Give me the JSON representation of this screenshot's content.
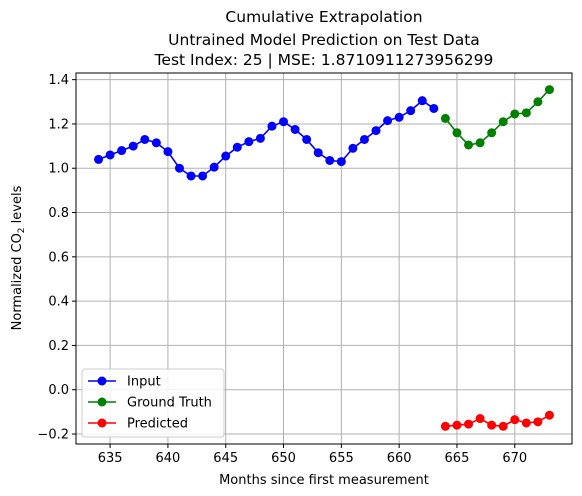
{
  "titles": {
    "line1": "Cumulative Extrapolation",
    "line2": "Untrained Model Prediction on Test Data",
    "line3": "Test Index: 25 | MSE: 1.8710911273956299"
  },
  "chart_data": {
    "type": "line",
    "xlabel": "Months since first measurement",
    "ylabel_prefix": "Normalized CO",
    "ylabel_sub": "2",
    "ylabel_suffix": " levels",
    "xlim": [
      632.05,
      674.95
    ],
    "ylim": [
      -0.245,
      1.43
    ],
    "xticks": [
      635,
      640,
      645,
      650,
      655,
      660,
      665,
      670
    ],
    "yticks": [
      -0.2,
      0.0,
      0.2,
      0.4,
      0.6,
      0.8,
      1.0,
      1.2,
      1.4
    ],
    "ytick_labels": [
      "−0.2",
      "0.0",
      "0.2",
      "0.4",
      "0.6",
      "0.8",
      "1.0",
      "1.2",
      "1.4"
    ],
    "grid": true,
    "legend_position": "lower-left",
    "series": [
      {
        "name": "Input",
        "color": "#0000ff",
        "marker": "circle",
        "x": [
          634,
          635,
          636,
          637,
          638,
          639,
          640,
          641,
          642,
          643,
          644,
          645,
          646,
          647,
          648,
          649,
          650,
          651,
          652,
          653,
          654,
          655,
          656,
          657,
          658,
          659,
          660,
          661,
          662,
          663
        ],
        "y": [
          1.04,
          1.06,
          1.08,
          1.1,
          1.13,
          1.115,
          1.075,
          1.0,
          0.965,
          0.965,
          1.005,
          1.055,
          1.095,
          1.12,
          1.135,
          1.19,
          1.21,
          1.175,
          1.13,
          1.07,
          1.035,
          1.03,
          1.09,
          1.13,
          1.17,
          1.215,
          1.23,
          1.26,
          1.305,
          1.27
        ]
      },
      {
        "name": "Ground Truth",
        "color": "#008000",
        "marker": "circle",
        "x": [
          664,
          665,
          666,
          667,
          668,
          669,
          670,
          671,
          672,
          673
        ],
        "y": [
          1.225,
          1.16,
          1.105,
          1.115,
          1.16,
          1.21,
          1.245,
          1.25,
          1.3,
          1.355
        ]
      },
      {
        "name": "Predicted",
        "color": "#ff0000",
        "marker": "circle",
        "x": [
          664,
          665,
          666,
          667,
          668,
          669,
          670,
          671,
          672,
          673
        ],
        "y": [
          -0.165,
          -0.16,
          -0.155,
          -0.13,
          -0.16,
          -0.165,
          -0.135,
          -0.15,
          -0.145,
          -0.115
        ]
      }
    ]
  }
}
